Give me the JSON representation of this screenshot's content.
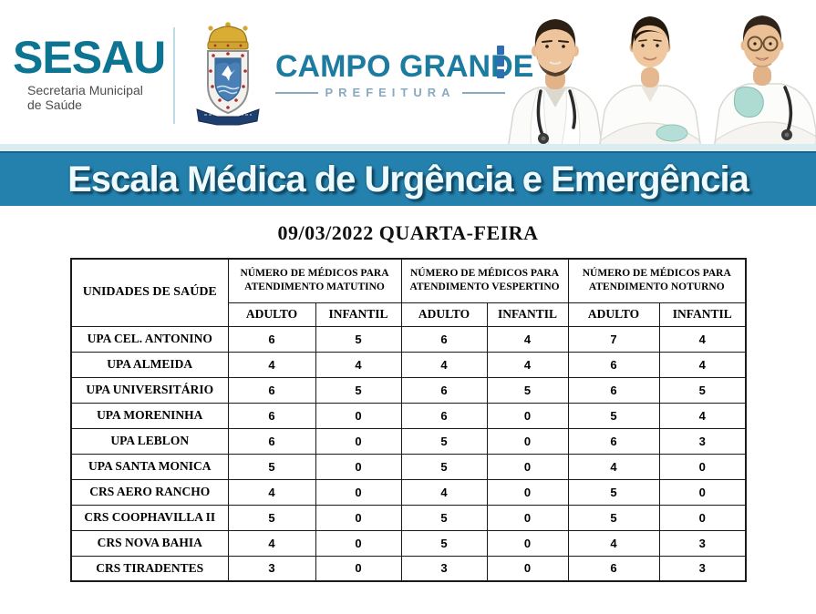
{
  "header": {
    "sesau": {
      "wordmark": "SESAU",
      "subtitle": "Secretaria Municipal\nde Saúde",
      "brand_color": "#0d7492"
    },
    "prefeitura": {
      "city": "CAMPO GRANDE",
      "label": "PREFEITURA",
      "coat_of_arms_icon": "campo-grande-coat-of-arms",
      "brand_color": "#1d7ba0"
    },
    "photo": "three-doctors-in-white-coats"
  },
  "banner": {
    "title": "Escala Médica de Urgência e Emergência",
    "background": "#2480ac"
  },
  "date_heading": "09/03/2022 QUARTA-FEIRA",
  "table": {
    "unit_header": "UNIDADES DE SAÚDE",
    "groups": [
      "NÚMERO DE MÉDICOS PARA ATENDIMENTO MATUTINO",
      "NÚMERO DE MÉDICOS PARA ATENDIMENTO VESPERTINO",
      "NÚMERO DE MÉDICOS PARA ATENDIMENTO NOTURNO"
    ],
    "sub_headers": [
      "ADULTO",
      "INFANTIL"
    ],
    "rows": [
      {
        "unit": "UPA CEL. ANTONINO",
        "values": [
          6,
          5,
          6,
          4,
          7,
          4
        ]
      },
      {
        "unit": "UPA ALMEIDA",
        "values": [
          4,
          4,
          4,
          4,
          6,
          4
        ]
      },
      {
        "unit": "UPA UNIVERSITÁRIO",
        "values": [
          6,
          5,
          6,
          5,
          6,
          5
        ]
      },
      {
        "unit": "UPA MORENINHA",
        "values": [
          6,
          0,
          6,
          0,
          5,
          4
        ]
      },
      {
        "unit": "UPA LEBLON",
        "values": [
          6,
          0,
          5,
          0,
          6,
          3
        ]
      },
      {
        "unit": "UPA SANTA MONICA",
        "values": [
          5,
          0,
          5,
          0,
          4,
          0
        ]
      },
      {
        "unit": "CRS AERO RANCHO",
        "values": [
          4,
          0,
          4,
          0,
          5,
          0
        ]
      },
      {
        "unit": "CRS COOPHAVILLA II",
        "values": [
          5,
          0,
          5,
          0,
          5,
          0
        ]
      },
      {
        "unit": "CRS NOVA BAHIA",
        "values": [
          4,
          0,
          5,
          0,
          4,
          3
        ]
      },
      {
        "unit": "CRS TIRADENTES",
        "values": [
          3,
          0,
          3,
          0,
          6,
          3
        ]
      }
    ]
  }
}
